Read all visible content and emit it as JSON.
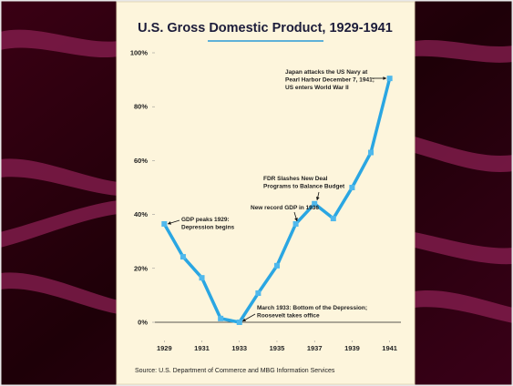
{
  "chart_data": {
    "type": "line",
    "title": "U.S. Gross Domestic Product, 1929-1941",
    "x": [
      1929,
      1930,
      1931,
      1932,
      1933,
      1934,
      1935,
      1936,
      1937,
      1938,
      1939,
      1940,
      1941
    ],
    "values": [
      36.5,
      24.3,
      16.5,
      1.4,
      0,
      10.8,
      21,
      36.5,
      44,
      38.5,
      50,
      63,
      90.5
    ],
    "color": "#2aa6e2",
    "xlim": [
      1928.5,
      1941.6
    ],
    "xticks": [
      1929,
      1931,
      1933,
      1935,
      1937,
      1939,
      1941
    ],
    "ylim": [
      0,
      100
    ],
    "yticks": [
      {
        "value": 0,
        "label": "0%"
      },
      {
        "value": 20,
        "label": "20%"
      },
      {
        "value": 40,
        "label": "40%"
      },
      {
        "value": 60,
        "label": "60%"
      },
      {
        "value": 80,
        "label": "80%"
      },
      {
        "value": 100,
        "label": "100%"
      }
    ],
    "annotations": [
      {
        "lines": [
          "Japan attacks the US Navy at",
          "Pearl Harbor December 7, 1941;",
          "US enters World War II"
        ]
      },
      {
        "lines": [
          "FDR Slashes New Deal",
          "Programs to Balance Budget"
        ]
      },
      {
        "lines": [
          "New record GDP in 1936"
        ]
      },
      {
        "lines": [
          "GDP peaks 1929:",
          "Depression begins"
        ]
      },
      {
        "lines": [
          "March 1933: Bottom of the Depression;",
          "Roosevelt takes office"
        ]
      }
    ],
    "source": "Source: U.S. Department of Commerce and MBG Information Services"
  }
}
